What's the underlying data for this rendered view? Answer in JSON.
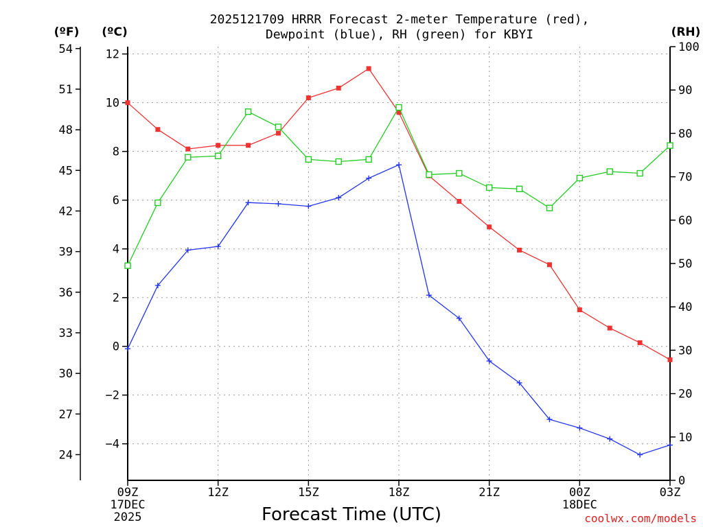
{
  "chart_data": {
    "type": "line",
    "title": [
      "2025121709 HRRR Forecast 2-meter Temperature (red),",
      "Dewpoint (blue), RH (green) for KBYI"
    ],
    "xlabel": "Forecast Time (UTC)",
    "credit": "coolwx.com/models",
    "units": {
      "fahrenheit": "(ºF)",
      "celsius": "(ºC)",
      "rh": "(RH)"
    },
    "x_hours": [
      0,
      1,
      2,
      3,
      4,
      5,
      6,
      7,
      8,
      9,
      10,
      11,
      12,
      13,
      14,
      15,
      16,
      17,
      18
    ],
    "x_ticks": [
      {
        "hour": 0,
        "lines": [
          "09Z",
          "17DEC",
          "2025"
        ]
      },
      {
        "hour": 3,
        "lines": [
          "12Z"
        ]
      },
      {
        "hour": 6,
        "lines": [
          "15Z"
        ]
      },
      {
        "hour": 9,
        "lines": [
          "18Z"
        ]
      },
      {
        "hour": 12,
        "lines": [
          "21Z"
        ]
      },
      {
        "hour": 15,
        "lines": [
          "00Z",
          "18DEC"
        ]
      },
      {
        "hour": 18,
        "lines": [
          "03Z"
        ]
      }
    ],
    "celsius_axis": {
      "ylim": [
        -5.5,
        12.3
      ],
      "ticks": [
        -4,
        -2,
        0,
        2,
        4,
        6,
        8,
        10,
        12
      ]
    },
    "fahrenheit_axis": {
      "ticks": [
        24,
        27,
        30,
        33,
        36,
        39,
        42,
        45,
        48,
        51,
        54
      ]
    },
    "rh_axis": {
      "ylim": [
        0,
        100
      ],
      "ticks": [
        0,
        10,
        20,
        30,
        40,
        50,
        60,
        70,
        80,
        90,
        100
      ]
    },
    "series": [
      {
        "name": "Temperature",
        "axis": "celsius",
        "color": "#ee3333",
        "marker": "filled-square",
        "values": [
          10.0,
          8.9,
          8.1,
          8.25,
          8.25,
          8.75,
          10.2,
          10.6,
          11.4,
          9.6,
          7.0,
          5.95,
          4.9,
          3.95,
          3.35,
          1.5,
          0.75,
          0.15,
          -0.55
        ]
      },
      {
        "name": "Dewpoint",
        "axis": "celsius",
        "color": "#2233ee",
        "marker": "plus",
        "values": [
          -0.1,
          2.5,
          3.95,
          4.1,
          5.9,
          5.85,
          5.75,
          6.1,
          6.9,
          7.45,
          2.1,
          1.15,
          -0.6,
          -1.5,
          -3.0,
          -3.35,
          -3.8,
          -4.45,
          -4.05
        ]
      },
      {
        "name": "RH",
        "axis": "rh",
        "color": "#22cc22",
        "marker": "open-square",
        "values": [
          49.5,
          64,
          74.5,
          74.8,
          85,
          81.5,
          74,
          73.5,
          74,
          86,
          70.5,
          70.8,
          67.5,
          67.2,
          62.8,
          69.7,
          71.2,
          70.8,
          77.2
        ]
      }
    ]
  }
}
